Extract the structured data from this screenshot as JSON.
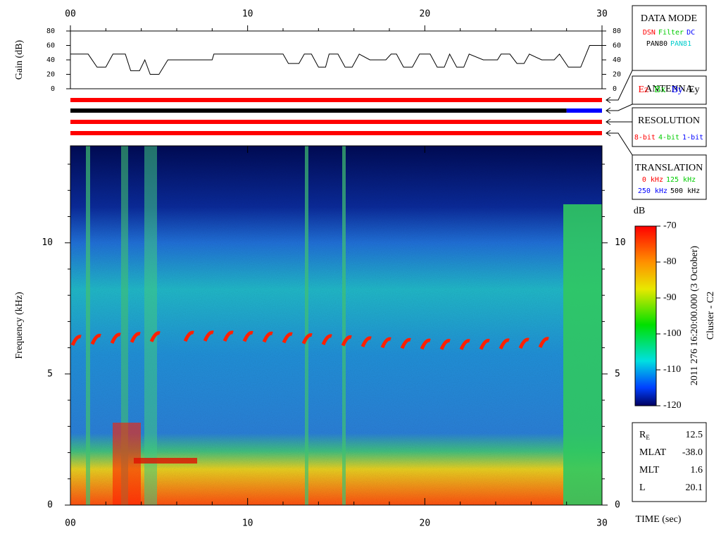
{
  "chart_data": [
    {
      "type": "line",
      "y_label": "Gain (dB)",
      "color": "#000000",
      "xlim": [
        0,
        30
      ],
      "xticks": [
        {
          "value": 0,
          "label": "00"
        },
        10,
        20,
        30
      ],
      "xminorticks": [
        2,
        4,
        6,
        8,
        12,
        14,
        16,
        18,
        22,
        24,
        26,
        28
      ],
      "ylim": [
        0,
        80
      ],
      "yticks": [
        0,
        20,
        40,
        60,
        80
      ],
      "x": [
        0,
        1.0,
        1.5,
        2.0,
        2.4,
        3.1,
        3.4,
        3.9,
        4.2,
        4.5,
        5.0,
        5.5,
        8.0,
        8.1,
        12.0,
        12.3,
        12.9,
        13.2,
        13.6,
        14.0,
        14.4,
        14.6,
        15.1,
        15.5,
        15.9,
        16.3,
        16.9,
        17.8,
        18.1,
        18.4,
        18.8,
        19.3,
        19.7,
        20.3,
        20.7,
        21.1,
        21.4,
        21.8,
        22.2,
        22.5,
        23.3,
        24.1,
        24.3,
        24.8,
        25.2,
        25.6,
        25.9,
        26.6,
        27.3,
        27.6,
        28.1,
        28.8,
        29.3,
        30
      ],
      "values": [
        48,
        48,
        30,
        30,
        48,
        48,
        25,
        25,
        40,
        20,
        20,
        40,
        40,
        48,
        48,
        35,
        35,
        48,
        48,
        30,
        30,
        48,
        48,
        30,
        30,
        48,
        40,
        40,
        48,
        48,
        30,
        30,
        48,
        48,
        30,
        30,
        48,
        30,
        30,
        48,
        40,
        40,
        48,
        48,
        35,
        35,
        48,
        40,
        40,
        48,
        30,
        30,
        60,
        60
      ]
    },
    {
      "type": "spectrogram",
      "y_label": "Frequency (kHz)",
      "x_label": "TIME (sec)",
      "xlim": [
        0,
        30
      ],
      "xticks": [
        {
          "value": 0,
          "label": "00"
        },
        10,
        20,
        30
      ],
      "xminorticks": [
        2,
        4,
        6,
        8,
        12,
        14,
        16,
        18,
        22,
        24,
        26,
        28
      ],
      "ylim": [
        0,
        13.7
      ],
      "yticks": [
        0,
        5,
        10
      ],
      "yminorticks": [
        1,
        2,
        3,
        4,
        6,
        7,
        8,
        9,
        11,
        12,
        13
      ]
    }
  ],
  "status_bars": [
    {
      "segments": [
        {
          "start": 0,
          "end": 30,
          "color": "#ff0000"
        }
      ]
    },
    {
      "segments": [
        {
          "start": 0,
          "end": 28,
          "color": "#000000"
        },
        {
          "start": 28,
          "end": 30,
          "color": "#0000ff"
        }
      ]
    },
    {
      "segments": [
        {
          "start": 0,
          "end": 30,
          "color": "#ff0000"
        }
      ]
    },
    {
      "segments": [
        {
          "start": 0,
          "end": 30,
          "color": "#ff0000"
        }
      ]
    }
  ],
  "legend_boxes": [
    {
      "title": "DATA MODE",
      "rows": [
        [
          {
            "text": "DSN",
            "color": "#ff0000"
          },
          {
            "text": "Filter",
            "color": "#00cc00"
          },
          {
            "text": "DC",
            "color": "#0000ff"
          }
        ],
        [
          {
            "text": "PAN80",
            "color": "#000000"
          },
          {
            "text": "PAN81",
            "color": "#00cccc"
          }
        ]
      ]
    },
    {
      "title": "ANTENNA",
      "rows": [
        [
          {
            "text": "Ez",
            "color": "#ff0000"
          },
          {
            "text": "Bx",
            "color": "#00cc00"
          },
          {
            "text": "By",
            "color": "#0000ff"
          },
          {
            "text": "Ey",
            "color": "#000000"
          }
        ]
      ]
    },
    {
      "title": "RESOLUTION",
      "rows": [
        [
          {
            "text": "8-bit",
            "color": "#ff0000"
          },
          {
            "text": "4-bit",
            "color": "#00cc00"
          },
          {
            "text": "1-bit",
            "color": "#0000ff"
          }
        ]
      ]
    },
    {
      "title": "TRANSLATION",
      "rows": [
        [
          {
            "text": "0 kHz",
            "color": "#ff0000"
          },
          {
            "text": "125 kHz",
            "color": "#00cc00"
          }
        ],
        [
          {
            "text": "250 kHz",
            "color": "#0000ff"
          },
          {
            "text": "500 kHz",
            "color": "#000000"
          }
        ]
      ]
    }
  ],
  "colorbar": {
    "label": "dB",
    "lim": [
      -120,
      -70
    ],
    "ticks": [
      -70,
      -80,
      -90,
      -100,
      -110,
      -120
    ]
  },
  "timestamp": "2011 276 16:20:00.000 (3 October)",
  "spacecraft": "Cluster - C2",
  "info": [
    {
      "label": "R",
      "sub": "E",
      "value": "12.5"
    },
    {
      "label": "MLAT",
      "value": "-38.0"
    },
    {
      "label": "MLT",
      "value": "1.6"
    },
    {
      "label": "L",
      "value": "20.1"
    }
  ]
}
